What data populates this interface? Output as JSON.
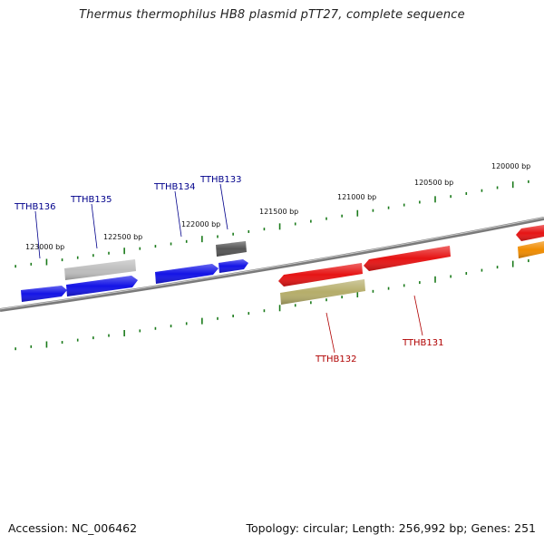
{
  "title": "Thermus thermophilus HB8 plasmid pTT27, complete sequence",
  "footer": {
    "accession": "Accession: NC_006462",
    "summary": "Topology: circular; Length: 256,992 bp; Genes: 251"
  },
  "colors": {
    "backbone": "#7a7a7a",
    "ticks": "#1a7a1a",
    "forward_label": "#00008b",
    "reverse_label": "#b00000"
  },
  "scale_labels": [
    "123000 bp",
    "122500 bp",
    "122000 bp",
    "121500 bp",
    "121000 bp",
    "120500 bp",
    "120000 bp"
  ],
  "gene_labels": [
    {
      "text": "TTHB136",
      "strand": "forward"
    },
    {
      "text": "TTHB135",
      "strand": "forward"
    },
    {
      "text": "TTHB134",
      "strand": "forward"
    },
    {
      "text": "TTHB133",
      "strand": "forward"
    },
    {
      "text": "TTHB132",
      "strand": "reverse"
    },
    {
      "text": "TTHB131",
      "strand": "reverse"
    }
  ],
  "features": [
    {
      "name": "tthb136-gene",
      "color": "#1414e6"
    },
    {
      "name": "tthb135-gene",
      "color": "#1414e6"
    },
    {
      "name": "tthb135-partner-gene",
      "color": "#bdbdbd"
    },
    {
      "name": "tthb134-gene",
      "color": "#1414e6"
    },
    {
      "name": "tthb133-gene-a",
      "color": "#1414e6"
    },
    {
      "name": "tthb133-gene-b",
      "color": "#555555"
    },
    {
      "name": "tthb132-gene",
      "color": "#e61414"
    },
    {
      "name": "tthb132-partner-gene",
      "color": "#b5ad6a"
    },
    {
      "name": "tthb131-gene",
      "color": "#e61414"
    },
    {
      "name": "edge-gene-red",
      "color": "#e61414"
    },
    {
      "name": "edge-gene-orange",
      "color": "#f08c00"
    }
  ]
}
